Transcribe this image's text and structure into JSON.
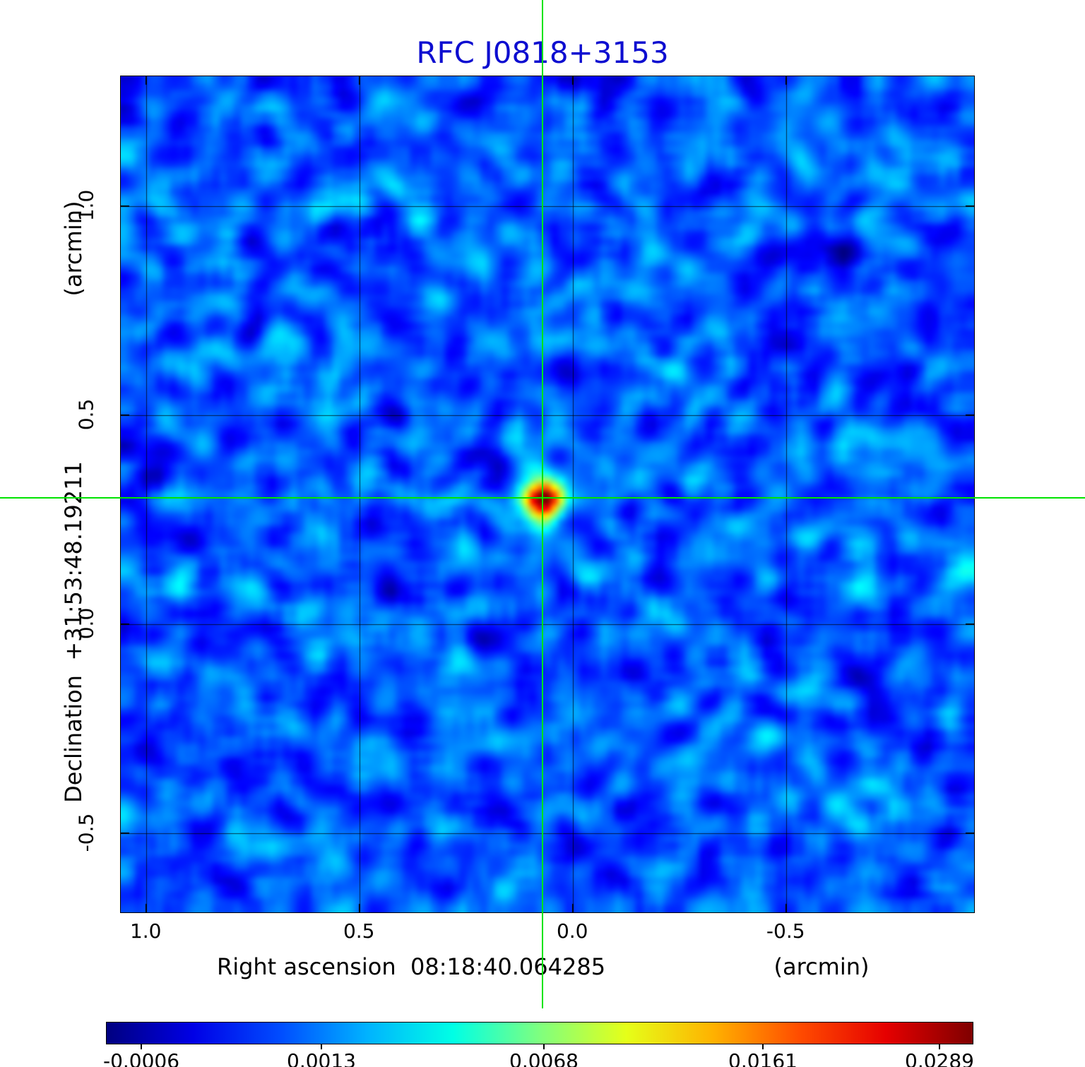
{
  "title": "RFC J0818+3153",
  "title_color": "#0d0dd0",
  "axes": {
    "x_label": "Right ascension  08:18:40.064285",
    "x_unit": "(arcmin)",
    "y_label": "Declination  +31:53:48.19211",
    "y_unit": "(arcmin)",
    "x_tick_labels": [
      "1.0",
      "0.5",
      "0.0",
      "-0.5"
    ],
    "y_tick_labels": [
      "1.0",
      "0.5",
      "0.0",
      "-0.5"
    ]
  },
  "colorbar": {
    "labels": [
      "-0.0006",
      "0.0013",
      "0.0068",
      "0.0161",
      "0.0289"
    ]
  },
  "crosshair_color": "#00e400",
  "chart_data": {
    "type": "heatmap",
    "title": "RFC J0818+3153",
    "xlabel": "Right ascension 08:18:40.064285 (arcmin)",
    "ylabel": "Declination +31:53:48.19211 (arcmin)",
    "x_range_arcmin": [
      1.06,
      -0.94
    ],
    "y_range_arcmin": [
      -0.69,
      1.31
    ],
    "x_ticks_arcmin": [
      1.0,
      0.5,
      0.0,
      -0.5
    ],
    "y_ticks_arcmin": [
      1.0,
      0.5,
      0.0,
      -0.5
    ],
    "colormap": "jet",
    "colorbar_values": [
      -0.0006,
      0.0013,
      0.0068,
      0.0161,
      0.0289
    ],
    "intensity_min": -0.0006,
    "intensity_max": 0.0289,
    "noise_level": 0.001,
    "grid": true,
    "source": {
      "label": "RFC J0818+3153",
      "x_arcmin": 0.07,
      "y_arcmin": 0.3,
      "peak": 0.0289
    },
    "crosshair": {
      "x_arcmin": 0.07,
      "y_arcmin": 0.3
    }
  }
}
